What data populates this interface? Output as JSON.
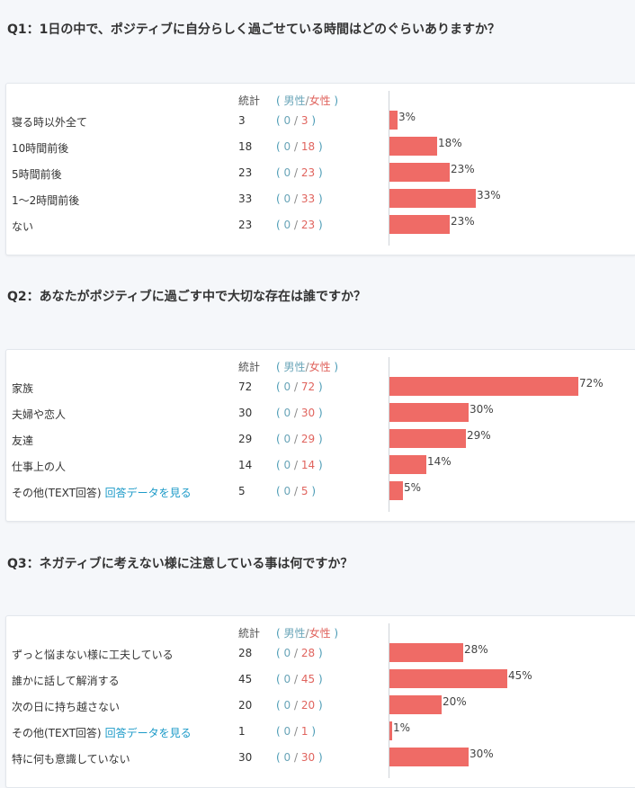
{
  "colors": {
    "bar": "#ef6b66",
    "male": "#6aa5b8",
    "female": "#e0645e",
    "link": "#1c9ac8"
  },
  "header": {
    "total": "統計",
    "open_paren": "(",
    "male": "男性",
    "slash": "/",
    "female": "女性",
    "close_paren": ")"
  },
  "questions": [
    {
      "title": "Q1：1日の中で、ポジティブに自分らしく過ごせている時間はどのぐらいありますか？",
      "rows": [
        {
          "label": "寝る時以外全て",
          "count": "3",
          "male": "0",
          "female": "3",
          "pct": 3,
          "pct_label": "3%"
        },
        {
          "label": "10時間前後",
          "count": "18",
          "male": "0",
          "female": "18",
          "pct": 18,
          "pct_label": "18%"
        },
        {
          "label": "5時間前後",
          "count": "23",
          "male": "0",
          "female": "23",
          "pct": 23,
          "pct_label": "23%"
        },
        {
          "label": "1〜2時間前後",
          "count": "33",
          "male": "0",
          "female": "33",
          "pct": 33,
          "pct_label": "33%"
        },
        {
          "label": "ない",
          "count": "23",
          "male": "0",
          "female": "23",
          "pct": 23,
          "pct_label": "23%"
        }
      ]
    },
    {
      "title": "Q2：あなたがポジティブに過ごす中で大切な存在は誰ですか？",
      "rows": [
        {
          "label": "家族",
          "count": "72",
          "male": "0",
          "female": "72",
          "pct": 72,
          "pct_label": "72%"
        },
        {
          "label": "夫婦や恋人",
          "count": "30",
          "male": "0",
          "female": "30",
          "pct": 30,
          "pct_label": "30%"
        },
        {
          "label": "友達",
          "count": "29",
          "male": "0",
          "female": "29",
          "pct": 29,
          "pct_label": "29%"
        },
        {
          "label": "仕事上の人",
          "count": "14",
          "male": "0",
          "female": "14",
          "pct": 14,
          "pct_label": "14%"
        },
        {
          "label": "その他(TEXT回答)",
          "link": "回答データを見る",
          "count": "5",
          "male": "0",
          "female": "5",
          "pct": 5,
          "pct_label": "5%"
        }
      ]
    },
    {
      "title": "Q3：ネガティブに考えない様に注意している事は何ですか？",
      "rows": [
        {
          "label": "ずっと悩まない様に工夫している",
          "count": "28",
          "male": "0",
          "female": "28",
          "pct": 28,
          "pct_label": "28%"
        },
        {
          "label": "誰かに話して解消する",
          "count": "45",
          "male": "0",
          "female": "45",
          "pct": 45,
          "pct_label": "45%"
        },
        {
          "label": "次の日に持ち越さない",
          "count": "20",
          "male": "0",
          "female": "20",
          "pct": 20,
          "pct_label": "20%"
        },
        {
          "label": "その他(TEXT回答)",
          "link": "回答データを見る",
          "count": "1",
          "male": "0",
          "female": "1",
          "pct": 1,
          "pct_label": "1%"
        },
        {
          "label": "特に何も意識していない",
          "count": "30",
          "male": "0",
          "female": "30",
          "pct": 30,
          "pct_label": "30%"
        }
      ]
    }
  ]
}
